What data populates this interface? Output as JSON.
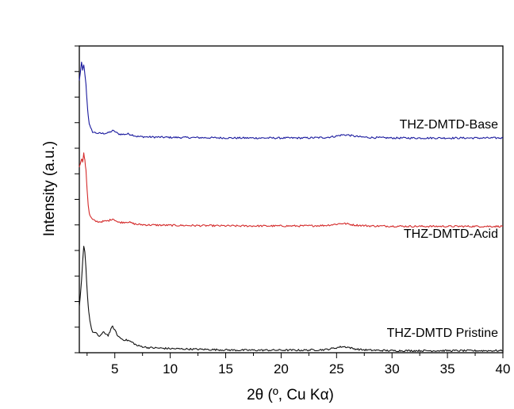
{
  "chart_data": {
    "type": "line",
    "title": "",
    "xlabel": "2θ (º, Cu Kα)",
    "ylabel": "Intensity (a.u.)",
    "xlim": [
      1.8,
      40
    ],
    "ylim": [
      0,
      3
    ],
    "x_ticks": [
      5,
      10,
      15,
      20,
      25,
      30,
      35,
      40
    ],
    "x_tick_labels": [
      "5",
      "10",
      "15",
      "20",
      "25",
      "30",
      "35",
      "40"
    ],
    "y_tick_count": 12,
    "y_tick_labels_shown": false,
    "grid": false,
    "legend": "none (labels placed next to each trace)",
    "series": [
      {
        "name": "THZ-DMTD-Base",
        "color": "#1a1a9e",
        "x": [
          1.8,
          2.0,
          2.1,
          2.2,
          2.3,
          2.4,
          2.5,
          2.6,
          2.7,
          2.8,
          3.0,
          3.3,
          3.6,
          4.0,
          4.4,
          4.8,
          5.0,
          5.3,
          5.7,
          6.2,
          6.6,
          7.0,
          8.0,
          9.0,
          10,
          12,
          14,
          16,
          18,
          20,
          22,
          24,
          24.8,
          25.5,
          26.0,
          26.5,
          27.2,
          28,
          30,
          32,
          34,
          36,
          38,
          40
        ],
        "y": [
          2.66,
          2.84,
          2.76,
          2.82,
          2.72,
          2.62,
          2.45,
          2.32,
          2.24,
          2.2,
          2.16,
          2.15,
          2.145,
          2.145,
          2.15,
          2.17,
          2.165,
          2.14,
          2.135,
          2.14,
          2.13,
          2.115,
          2.11,
          2.108,
          2.106,
          2.104,
          2.102,
          2.1,
          2.1,
          2.1,
          2.1,
          2.105,
          2.115,
          2.13,
          2.13,
          2.12,
          2.11,
          2.105,
          2.1,
          2.1,
          2.1,
          2.1,
          2.1,
          2.1
        ]
      },
      {
        "name": "THZ-DMTD-Acid",
        "color": "#d42a2a",
        "x": [
          1.8,
          2.0,
          2.1,
          2.2,
          2.3,
          2.4,
          2.5,
          2.6,
          2.7,
          2.8,
          3.0,
          3.3,
          3.6,
          4.0,
          4.4,
          4.8,
          5.0,
          5.3,
          5.7,
          6.2,
          6.6,
          7.0,
          8.0,
          9.0,
          10,
          12,
          14,
          16,
          18,
          20,
          22,
          24,
          24.8,
          25.5,
          26.0,
          26.5,
          27.2,
          28,
          30,
          32,
          34,
          36,
          38,
          40
        ],
        "y": [
          1.82,
          1.9,
          1.87,
          1.95,
          1.88,
          1.78,
          1.6,
          1.45,
          1.36,
          1.33,
          1.3,
          1.285,
          1.28,
          1.285,
          1.29,
          1.31,
          1.3,
          1.275,
          1.275,
          1.28,
          1.265,
          1.255,
          1.25,
          1.248,
          1.246,
          1.244,
          1.242,
          1.24,
          1.24,
          1.24,
          1.24,
          1.245,
          1.255,
          1.265,
          1.26,
          1.25,
          1.245,
          1.24,
          1.238,
          1.236,
          1.236,
          1.236,
          1.236,
          1.236
        ]
      },
      {
        "name": "THZ-DMTD Pristine",
        "color": "#111111",
        "x": [
          1.8,
          2.0,
          2.1,
          2.2,
          2.3,
          2.4,
          2.5,
          2.6,
          2.7,
          2.8,
          3.0,
          3.3,
          3.6,
          4.0,
          4.4,
          4.8,
          5.0,
          5.3,
          5.7,
          6.2,
          6.6,
          7.0,
          8.0,
          9.0,
          10,
          12,
          14,
          16,
          18,
          20,
          22,
          24,
          24.8,
          25.5,
          26.0,
          26.5,
          27.2,
          28,
          30,
          32,
          34,
          36,
          38,
          40
        ],
        "y": [
          0.45,
          0.7,
          0.88,
          1.04,
          0.98,
          0.82,
          0.62,
          0.46,
          0.36,
          0.28,
          0.2,
          0.19,
          0.16,
          0.2,
          0.17,
          0.26,
          0.22,
          0.16,
          0.13,
          0.12,
          0.1,
          0.07,
          0.05,
          0.045,
          0.04,
          0.035,
          0.03,
          0.025,
          0.025,
          0.025,
          0.025,
          0.03,
          0.045,
          0.06,
          0.055,
          0.04,
          0.03,
          0.025,
          0.02,
          0.02,
          0.02,
          0.02,
          0.02,
          0.02
        ]
      }
    ]
  }
}
